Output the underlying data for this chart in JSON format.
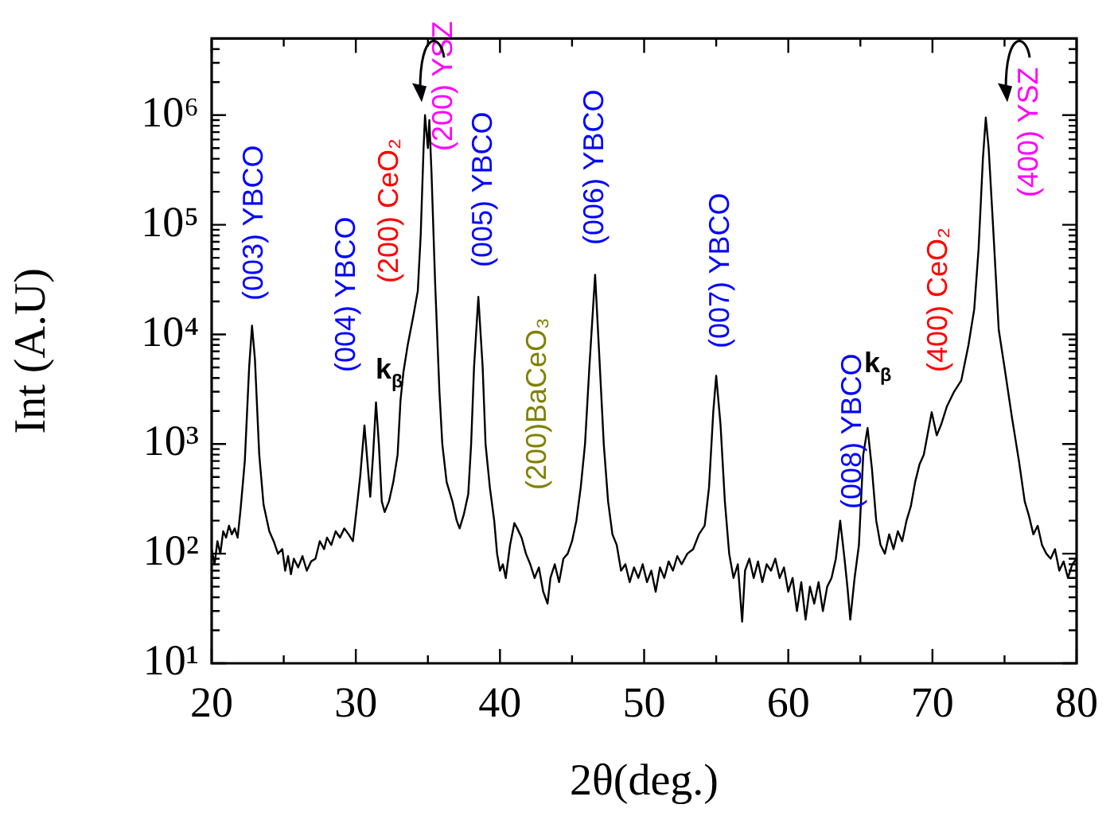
{
  "chart_data": {
    "type": "line",
    "xlabel": "2θ(deg.)",
    "ylabel": "Int (A.U)",
    "log": "y",
    "xlim": [
      20,
      80
    ],
    "xticks": [
      20,
      {
        "value": 25,
        "label": null
      },
      30,
      {
        "value": 35,
        "label": null
      },
      40,
      {
        "value": 45,
        "label": null
      },
      50,
      {
        "value": 55,
        "label": null
      },
      60,
      {
        "value": 65,
        "label": null
      },
      70,
      {
        "value": 75,
        "label": null
      },
      80
    ],
    "ylim": [
      10,
      5000000
    ],
    "yticks": [
      {
        "value": 10,
        "label": "10¹"
      },
      {
        "value": 20,
        "label": null
      },
      {
        "value": 30,
        "label": null
      },
      {
        "value": 40,
        "label": null
      },
      {
        "value": 50,
        "label": null
      },
      {
        "value": 60,
        "label": null
      },
      {
        "value": 70,
        "label": null
      },
      {
        "value": 80,
        "label": null
      },
      {
        "value": 90,
        "label": null
      },
      {
        "value": 100,
        "label": "10²"
      },
      {
        "value": 200,
        "label": null
      },
      {
        "value": 300,
        "label": null
      },
      {
        "value": 400,
        "label": null
      },
      {
        "value": 500,
        "label": null
      },
      {
        "value": 600,
        "label": null
      },
      {
        "value": 700,
        "label": null
      },
      {
        "value": 800,
        "label": null
      },
      {
        "value": 900,
        "label": null
      },
      {
        "value": 1000,
        "label": "10³"
      },
      {
        "value": 2000,
        "label": null
      },
      {
        "value": 3000,
        "label": null
      },
      {
        "value": 4000,
        "label": null
      },
      {
        "value": 5000,
        "label": null
      },
      {
        "value": 6000,
        "label": null
      },
      {
        "value": 7000,
        "label": null
      },
      {
        "value": 8000,
        "label": null
      },
      {
        "value": 9000,
        "label": null
      },
      {
        "value": 10000,
        "label": "10⁴"
      },
      {
        "value": 20000,
        "label": null
      },
      {
        "value": 30000,
        "label": null
      },
      {
        "value": 40000,
        "label": null
      },
      {
        "value": 50000,
        "label": null
      },
      {
        "value": 60000,
        "label": null
      },
      {
        "value": 70000,
        "label": null
      },
      {
        "value": 80000,
        "label": null
      },
      {
        "value": 90000,
        "label": null
      },
      {
        "value": 100000,
        "label": "10⁵"
      },
      {
        "value": 200000,
        "label": null
      },
      {
        "value": 300000,
        "label": null
      },
      {
        "value": 400000,
        "label": null
      },
      {
        "value": 500000,
        "label": null
      },
      {
        "value": 600000,
        "label": null
      },
      {
        "value": 700000,
        "label": null
      },
      {
        "value": 800000,
        "label": null
      },
      {
        "value": 900000,
        "label": null
      },
      {
        "value": 1000000,
        "label": "10⁶"
      },
      {
        "value": 2000000,
        "label": null
      },
      {
        "value": 3000000,
        "label": null
      },
      {
        "value": 4000000,
        "label": null
      },
      {
        "value": 5000000,
        "label": null
      }
    ],
    "series": [
      {
        "color": "#000000",
        "x": [
          20.0,
          20.2,
          20.4,
          20.6,
          20.8,
          21.0,
          21.2,
          21.4,
          21.6,
          21.8,
          22.0,
          22.3,
          22.6,
          22.8,
          23.0,
          23.3,
          23.6,
          24.0,
          24.3,
          24.6,
          24.9,
          25.1,
          25.3,
          25.5,
          25.7,
          26.0,
          26.3,
          26.6,
          26.9,
          27.2,
          27.5,
          27.8,
          28.0,
          28.3,
          28.6,
          28.9,
          29.2,
          29.5,
          29.8,
          30.0,
          30.3,
          30.6,
          30.8,
          31.0,
          31.2,
          31.4,
          31.6,
          31.8,
          32.0,
          32.3,
          32.6,
          32.9,
          33.1,
          33.3,
          33.6,
          34.0,
          34.3,
          34.5,
          34.7,
          34.8,
          35.0,
          35.1,
          35.25,
          35.5,
          35.8,
          36.0,
          36.3,
          36.7,
          37.0,
          37.2,
          37.5,
          37.8,
          38.0,
          38.2,
          38.5,
          38.8,
          39.0,
          39.3,
          39.6,
          39.8,
          40.0,
          40.2,
          40.4,
          40.7,
          41.0,
          41.2,
          41.5,
          41.8,
          42.1,
          42.4,
          42.7,
          43.0,
          43.3,
          43.5,
          43.8,
          44.1,
          44.4,
          44.7,
          45.0,
          45.3,
          45.6,
          45.9,
          46.2,
          46.6,
          46.9,
          47.2,
          47.5,
          47.8,
          48.1,
          48.4,
          48.7,
          49.0,
          49.3,
          49.6,
          49.9,
          50.2,
          50.5,
          50.8,
          51.1,
          51.4,
          51.7,
          52.0,
          52.3,
          52.6,
          53.0,
          53.4,
          53.8,
          54.2,
          54.5,
          54.8,
          55.0,
          55.3,
          55.6,
          55.9,
          56.2,
          56.5,
          56.8,
          57.0,
          57.3,
          57.6,
          57.9,
          58.2,
          58.5,
          58.8,
          59.1,
          59.4,
          59.7,
          60.0,
          60.3,
          60.6,
          60.9,
          61.2,
          61.5,
          61.8,
          62.1,
          62.4,
          62.7,
          63.0,
          63.3,
          63.6,
          63.9,
          64.1,
          64.3,
          64.6,
          64.9,
          65.2,
          65.5,
          65.8,
          66.1,
          66.4,
          66.7,
          67.0,
          67.3,
          67.6,
          67.9,
          68.2,
          68.5,
          68.8,
          69.1,
          69.4,
          69.7,
          69.95,
          70.3,
          70.6,
          71.0,
          71.5,
          72.0,
          72.5,
          72.9,
          73.2,
          73.5,
          73.7,
          73.9,
          74.2,
          74.6,
          75.0,
          75.5,
          76.0,
          76.4,
          76.7,
          77.0,
          77.3,
          77.6,
          77.9,
          78.2,
          78.5,
          78.8,
          79.1,
          79.4,
          79.7,
          80.0
        ],
        "values": [
          110,
          80,
          130,
          100,
          160,
          140,
          180,
          150,
          170,
          140,
          250,
          700,
          5000,
          12000,
          6000,
          800,
          280,
          160,
          130,
          100,
          110,
          70,
          95,
          65,
          90,
          75,
          95,
          70,
          85,
          90,
          130,
          110,
          140,
          120,
          160,
          140,
          170,
          150,
          130,
          220,
          500,
          1480,
          700,
          330,
          800,
          2400,
          1000,
          300,
          240,
          300,
          450,
          800,
          2500,
          4500,
          8000,
          15000,
          25000,
          80000,
          500000,
          1000000,
          500000,
          900000,
          300000,
          30000,
          3000,
          1000,
          450,
          300,
          200,
          170,
          230,
          350,
          1000,
          5000,
          22000,
          5000,
          1000,
          400,
          200,
          100,
          70,
          80,
          60,
          120,
          190,
          170,
          140,
          100,
          80,
          60,
          75,
          45,
          35,
          60,
          80,
          55,
          90,
          100,
          130,
          200,
          400,
          1000,
          5000,
          35000,
          6000,
          1000,
          300,
          150,
          120,
          70,
          80,
          55,
          75,
          60,
          80,
          55,
          70,
          45,
          75,
          60,
          85,
          70,
          95,
          80,
          100,
          110,
          150,
          180,
          400,
          2000,
          4200,
          1500,
          300,
          100,
          60,
          80,
          24,
          70,
          90,
          60,
          85,
          55,
          80,
          70,
          90,
          60,
          75,
          45,
          60,
          30,
          55,
          25,
          50,
          35,
          55,
          30,
          50,
          60,
          90,
          200,
          90,
          50,
          25,
          60,
          120,
          800,
          1400,
          600,
          200,
          120,
          100,
          150,
          110,
          160,
          130,
          200,
          270,
          450,
          650,
          800,
          1300,
          1950,
          1200,
          1500,
          2200,
          3000,
          3800,
          8000,
          17000,
          60000,
          400000,
          950000,
          500000,
          100000,
          11000,
          5000,
          1800,
          700,
          300,
          220,
          150,
          180,
          120,
          100,
          90,
          110,
          70,
          85,
          60,
          80,
          90
        ]
      }
    ],
    "annotations": [
      "(003) YBCO",
      "(004) YBCO",
      "k$_{β}$",
      "(200) CeO₂",
      "(200) YSZ",
      "(005) YBCO",
      "(200)BaCeO₃",
      "(006) YBCO",
      "(007) YBCO",
      "(008) YBCO",
      "k$_{β}$",
      "(400) CeO₂",
      "(400) YSZ"
    ]
  }
}
